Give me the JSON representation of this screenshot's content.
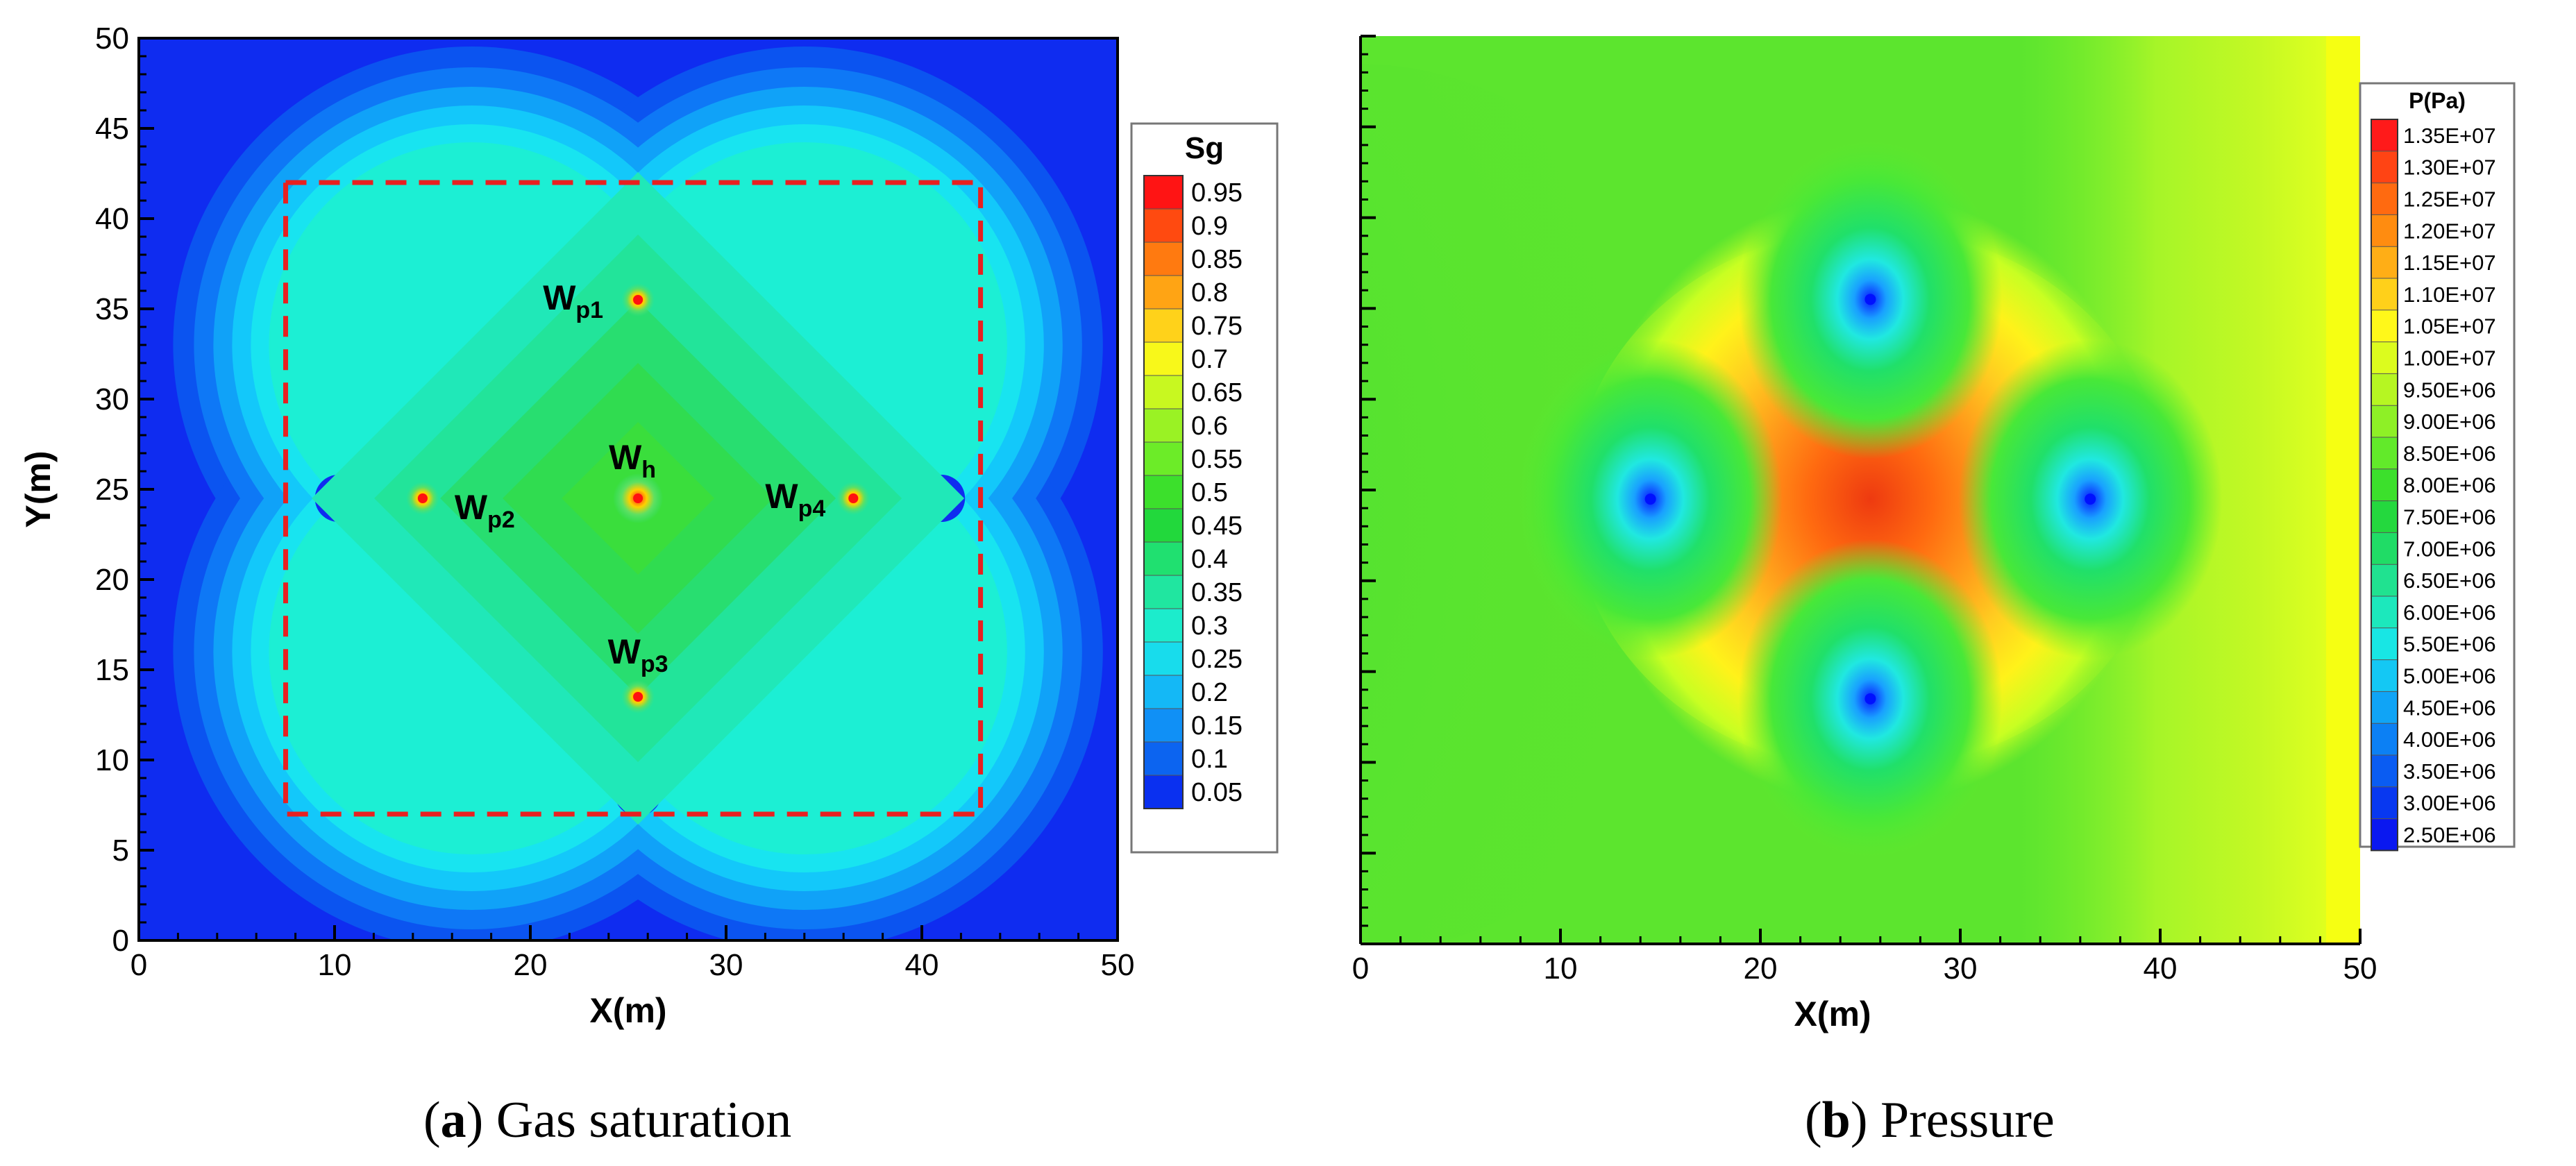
{
  "chart_data": [
    {
      "type": "heatmap",
      "panel": "a",
      "caption_letter": "a",
      "caption_text": "Gas saturation",
      "xlabel": "X(m)",
      "ylabel": "Y(m)",
      "xlim": [
        0,
        50
      ],
      "ylim": [
        0,
        50
      ],
      "xticks": [
        "0",
        "10",
        "20",
        "30",
        "40",
        "50"
      ],
      "yticks": [
        "0",
        "5",
        "10",
        "15",
        "20",
        "25",
        "30",
        "35",
        "40",
        "45",
        "50"
      ],
      "legend": {
        "title": "Sg",
        "levels": [
          "0.95",
          "0.9",
          "0.85",
          "0.8",
          "0.75",
          "0.7",
          "0.65",
          "0.6",
          "0.55",
          "0.5",
          "0.45",
          "0.4",
          "0.35",
          "0.3",
          "0.25",
          "0.2",
          "0.15",
          "0.1",
          "0.05"
        ]
      },
      "wells": [
        {
          "name": "W",
          "sub": "h",
          "x": 25.5,
          "y": 24.5
        },
        {
          "name": "W",
          "sub": "p1",
          "x": 25.5,
          "y": 35.5
        },
        {
          "name": "W",
          "sub": "p2",
          "x": 14.5,
          "y": 24.5
        },
        {
          "name": "W",
          "sub": "p3",
          "x": 25.5,
          "y": 13.5
        },
        {
          "name": "W",
          "sub": "p4",
          "x": 36.5,
          "y": 24.5
        }
      ],
      "boundary_box": {
        "x": [
          7.5,
          43
        ],
        "y": [
          7,
          42
        ]
      },
      "colors": {
        "background": "#0f2cf0",
        "dashed": "#e82020"
      }
    },
    {
      "type": "heatmap",
      "panel": "b",
      "caption_letter": "b",
      "caption_text": "Pressure",
      "xlabel": "X(m)",
      "ylabel": "",
      "xlim": [
        0,
        50
      ],
      "ylim": [
        0,
        50
      ],
      "xticks": [
        "0",
        "10",
        "20",
        "30",
        "40",
        "50"
      ],
      "legend": {
        "title": "P(Pa)",
        "levels": [
          "1.35E+07",
          "1.30E+07",
          "1.25E+07",
          "1.20E+07",
          "1.15E+07",
          "1.10E+07",
          "1.05E+07",
          "1.00E+07",
          "9.50E+06",
          "9.00E+06",
          "8.50E+06",
          "8.00E+06",
          "7.50E+06",
          "7.00E+06",
          "6.50E+06",
          "6.00E+06",
          "5.50E+06",
          "5.00E+06",
          "4.50E+06",
          "4.00E+06",
          "3.50E+06",
          "3.00E+06",
          "2.50E+06"
        ]
      },
      "wells": [
        {
          "x": 25.5,
          "y": 35.5
        },
        {
          "x": 14.5,
          "y": 24.5
        },
        {
          "x": 25.5,
          "y": 13.5
        },
        {
          "x": 36.5,
          "y": 24.5
        }
      ],
      "peak": {
        "x": 25.5,
        "y": 24.5
      }
    }
  ]
}
